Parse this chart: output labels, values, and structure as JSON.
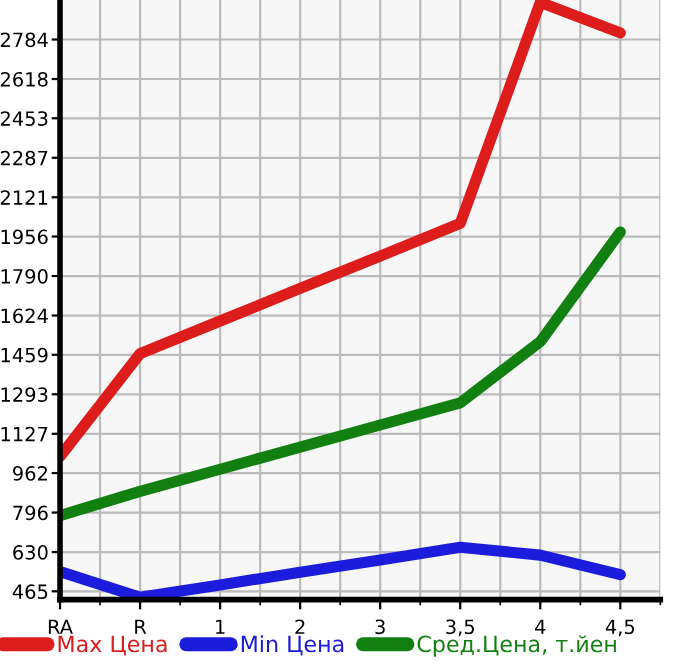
{
  "chart_data": {
    "type": "line",
    "categories": [
      "RA",
      "R",
      "1",
      "2",
      "3",
      "3,5",
      "4",
      "4,5"
    ],
    "series": [
      {
        "name": "Max Цена",
        "color": "#dd1c1c",
        "values": [
          1031,
          1464,
          1601,
          1738,
          1874,
          2011,
          2940,
          2812
        ]
      },
      {
        "name": "Min Цена",
        "color": "#1c1cdd",
        "values": [
          548,
          440,
          492,
          545,
          597,
          650,
          617,
          535
        ]
      },
      {
        "name": "Сред.Цена, т.йен",
        "color": "#118011",
        "values": [
          783,
          885,
          978,
          1071,
          1164,
          1257,
          1514,
          1975
        ]
      }
    ],
    "ylim": [
      430,
      2950
    ],
    "yticks": [
      465,
      630,
      796,
      962,
      1127,
      1293,
      1459,
      1624,
      1790,
      1956,
      2121,
      2287,
      2453,
      2618,
      2784
    ],
    "grid": true,
    "legend": "bottom",
    "marker": "none",
    "line_style": "solid"
  }
}
